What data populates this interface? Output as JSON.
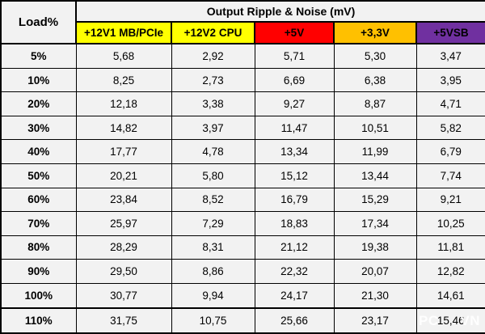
{
  "table": {
    "corner_label": "Load%",
    "title": "Output Ripple & Noise (mV)",
    "grid_color": "#000000",
    "cell_background": "#F2F2F2",
    "columns": [
      {
        "label": "+12V1 MB/PCIe",
        "color": "#FFFF00",
        "text_color": "#000000"
      },
      {
        "label": "+12V2 CPU",
        "color": "#FFFF00",
        "text_color": "#000000"
      },
      {
        "label": "+5V",
        "color": "#FF0000",
        "text_color": "#000000"
      },
      {
        "label": "+3,3V",
        "color": "#FFC000",
        "text_color": "#000000"
      },
      {
        "label": "+5VSB",
        "color": "#7030A0",
        "text_color": "#000000"
      }
    ],
    "rows": [
      {
        "load": "5%",
        "values": [
          "5,68",
          "2,92",
          "5,71",
          "5,30",
          "3,47"
        ]
      },
      {
        "load": "10%",
        "values": [
          "8,25",
          "2,73",
          "6,69",
          "6,38",
          "3,95"
        ]
      },
      {
        "load": "20%",
        "values": [
          "12,18",
          "3,38",
          "9,27",
          "8,87",
          "4,71"
        ]
      },
      {
        "load": "30%",
        "values": [
          "14,82",
          "3,97",
          "11,47",
          "10,51",
          "5,82"
        ]
      },
      {
        "load": "40%",
        "values": [
          "17,77",
          "4,78",
          "13,34",
          "11,99",
          "6,79"
        ]
      },
      {
        "load": "50%",
        "values": [
          "20,21",
          "5,80",
          "15,12",
          "13,44",
          "7,74"
        ]
      },
      {
        "load": "60%",
        "values": [
          "23,84",
          "8,52",
          "16,79",
          "15,29",
          "9,21"
        ]
      },
      {
        "load": "70%",
        "values": [
          "25,97",
          "7,29",
          "18,83",
          "17,34",
          "10,25"
        ]
      },
      {
        "load": "80%",
        "values": [
          "28,29",
          "8,31",
          "21,12",
          "19,38",
          "11,81"
        ]
      },
      {
        "load": "90%",
        "values": [
          "29,50",
          "8,86",
          "22,32",
          "20,07",
          "12,82"
        ]
      },
      {
        "load": "100%",
        "values": [
          "30,77",
          "9,94",
          "24,17",
          "21,30",
          "14,61"
        ]
      },
      {
        "load": "110%",
        "values": [
          "31,75",
          "10,75",
          "25,66",
          "23,17",
          "15,46"
        ]
      }
    ]
  },
  "watermark": {
    "prefix": "PC",
    "suffix": "VN",
    "color": "#FFFFFF"
  },
  "chart_data": {
    "type": "table",
    "title": "Output Ripple & Noise (mV)",
    "xlabel": "Load%",
    "ylabel": "Ripple & Noise (mV)",
    "categories": [
      "5%",
      "10%",
      "20%",
      "30%",
      "40%",
      "50%",
      "60%",
      "70%",
      "80%",
      "90%",
      "100%",
      "110%"
    ],
    "series": [
      {
        "name": "+12V1 MB/PCIe",
        "values": [
          5.68,
          8.25,
          12.18,
          14.82,
          17.77,
          20.21,
          23.84,
          25.97,
          28.29,
          29.5,
          30.77,
          31.75
        ]
      },
      {
        "name": "+12V2 CPU",
        "values": [
          2.92,
          2.73,
          3.38,
          3.97,
          4.78,
          5.8,
          8.52,
          7.29,
          8.31,
          8.86,
          9.94,
          10.75
        ]
      },
      {
        "name": "+5V",
        "values": [
          5.71,
          6.69,
          9.27,
          11.47,
          13.34,
          15.12,
          16.79,
          18.83,
          21.12,
          22.32,
          24.17,
          25.66
        ]
      },
      {
        "name": "+3,3V",
        "values": [
          5.3,
          6.38,
          8.87,
          10.51,
          11.99,
          13.44,
          15.29,
          17.34,
          19.38,
          20.07,
          21.3,
          23.17
        ]
      },
      {
        "name": "+5VSB",
        "values": [
          3.47,
          3.95,
          4.71,
          5.82,
          6.79,
          7.74,
          9.21,
          10.25,
          11.81,
          12.82,
          14.61,
          15.46
        ]
      }
    ]
  }
}
